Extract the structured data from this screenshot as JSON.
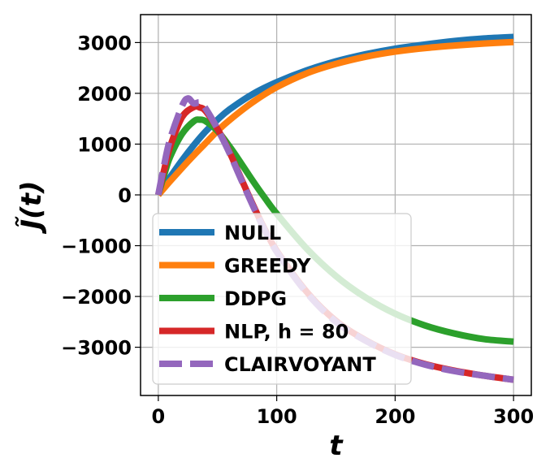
{
  "chart_data": {
    "type": "line",
    "title": "",
    "xlabel": "t",
    "ylabel": "J̃(t)",
    "xlim": [
      -15,
      315
    ],
    "ylim": [
      -3950,
      3550
    ],
    "grid": true,
    "legend_placement": "lower-left",
    "x_ticks": [
      0,
      100,
      200,
      300
    ],
    "y_ticks": [
      -3000,
      -2000,
      -1000,
      0,
      1000,
      2000,
      3000
    ],
    "x_tick_labels": [
      "0",
      "100",
      "200",
      "300"
    ],
    "y_tick_labels": [
      "−3000",
      "−2000",
      "−1000",
      "0",
      "1000",
      "2000",
      "3000"
    ],
    "series": [
      {
        "name": "NULL",
        "color": "#1f77b4",
        "style": "solid",
        "x": [
          0,
          10,
          20,
          30,
          40,
          50,
          60,
          80,
          100,
          125,
          150,
          175,
          200,
          225,
          250,
          275,
          300
        ],
        "y": [
          0,
          350,
          680,
          980,
          1250,
          1480,
          1680,
          1990,
          2220,
          2450,
          2630,
          2770,
          2880,
          2960,
          3030,
          3080,
          3110
        ]
      },
      {
        "name": "GREEDY",
        "color": "#ff7f0e",
        "style": "solid",
        "x": [
          0,
          10,
          20,
          30,
          40,
          50,
          60,
          80,
          100,
          125,
          150,
          175,
          200,
          225,
          250,
          275,
          300
        ],
        "y": [
          0,
          270,
          530,
          780,
          1020,
          1260,
          1470,
          1830,
          2120,
          2390,
          2580,
          2720,
          2820,
          2890,
          2940,
          2980,
          3010
        ]
      },
      {
        "name": "DDPG",
        "color": "#2ca02c",
        "style": "solid",
        "x": [
          0,
          5,
          10,
          20,
          30,
          35,
          40,
          50,
          60,
          70,
          80,
          90,
          100,
          125,
          150,
          175,
          200,
          225,
          250,
          275,
          300
        ],
        "y": [
          0,
          400,
          750,
          1200,
          1450,
          1480,
          1450,
          1260,
          960,
          620,
          270,
          -60,
          -370,
          -1050,
          -1600,
          -2020,
          -2340,
          -2570,
          -2730,
          -2840,
          -2890
        ]
      },
      {
        "name": "NLP, h = 80",
        "color": "#d62728",
        "style": "solid",
        "x": [
          0,
          5,
          10,
          20,
          30,
          35,
          40,
          50,
          60,
          70,
          80,
          90,
          100,
          125,
          150,
          175,
          200,
          225,
          250,
          275,
          300
        ],
        "y": [
          0,
          500,
          950,
          1530,
          1730,
          1720,
          1650,
          1300,
          850,
          320,
          -200,
          -680,
          -1100,
          -1900,
          -2480,
          -2860,
          -3140,
          -3330,
          -3460,
          -3560,
          -3640
        ]
      },
      {
        "name": "CLAIRVOYANT",
        "color": "#9467bd",
        "style": "dashed",
        "x": [
          0,
          5,
          10,
          20,
          25,
          30,
          35,
          40,
          50,
          60,
          70,
          80,
          90,
          100,
          125,
          150,
          175,
          200,
          225,
          250,
          275,
          300
        ],
        "y": [
          0,
          600,
          1100,
          1750,
          1900,
          1800,
          1820,
          1700,
          1300,
          830,
          300,
          -220,
          -700,
          -1120,
          -1920,
          -2500,
          -2870,
          -3150,
          -3340,
          -3470,
          -3560,
          -3640
        ]
      }
    ]
  }
}
